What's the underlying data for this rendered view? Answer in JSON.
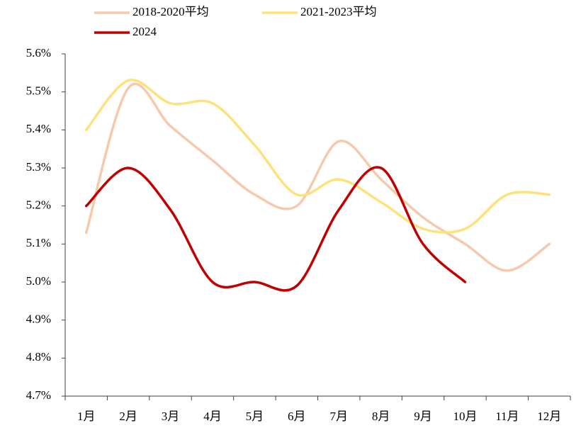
{
  "chart_data": {
    "type": "line",
    "categories": [
      "1月",
      "2月",
      "3月",
      "4月",
      "5月",
      "6月",
      "7月",
      "8月",
      "9月",
      "10月",
      "11月",
      "12月"
    ],
    "series": [
      {
        "name": "2018-2020平均",
        "color": "#f6c9ac",
        "values": [
          5.13,
          5.51,
          5.41,
          5.32,
          5.23,
          5.2,
          5.37,
          5.27,
          5.17,
          5.1,
          5.03,
          5.1
        ]
      },
      {
        "name": "2021-2023平均",
        "color": "#fde27c",
        "values": [
          5.4,
          5.53,
          5.47,
          5.47,
          5.36,
          5.23,
          5.27,
          5.21,
          5.14,
          5.14,
          5.23,
          5.23
        ]
      },
      {
        "name": "2024",
        "color": "#c00000",
        "values": [
          5.2,
          5.3,
          5.19,
          5.0,
          5.0,
          4.99,
          5.19,
          5.3,
          5.1,
          5.0,
          null,
          null
        ]
      }
    ],
    "ylim": [
      4.7,
      5.6
    ],
    "yticks": [
      {
        "value": 4.7,
        "label": "4.7%"
      },
      {
        "value": 4.8,
        "label": "4.8%"
      },
      {
        "value": 4.9,
        "label": "4.9%"
      },
      {
        "value": 5.0,
        "label": "5.0%"
      },
      {
        "value": 5.1,
        "label": "5.1%"
      },
      {
        "value": 5.2,
        "label": "5.2%"
      },
      {
        "value": 5.3,
        "label": "5.3%"
      },
      {
        "value": 5.4,
        "label": "5.4%"
      },
      {
        "value": 5.5,
        "label": "5.5%"
      },
      {
        "value": 5.6,
        "label": "5.6%"
      }
    ],
    "grid": false,
    "smooth": true
  }
}
